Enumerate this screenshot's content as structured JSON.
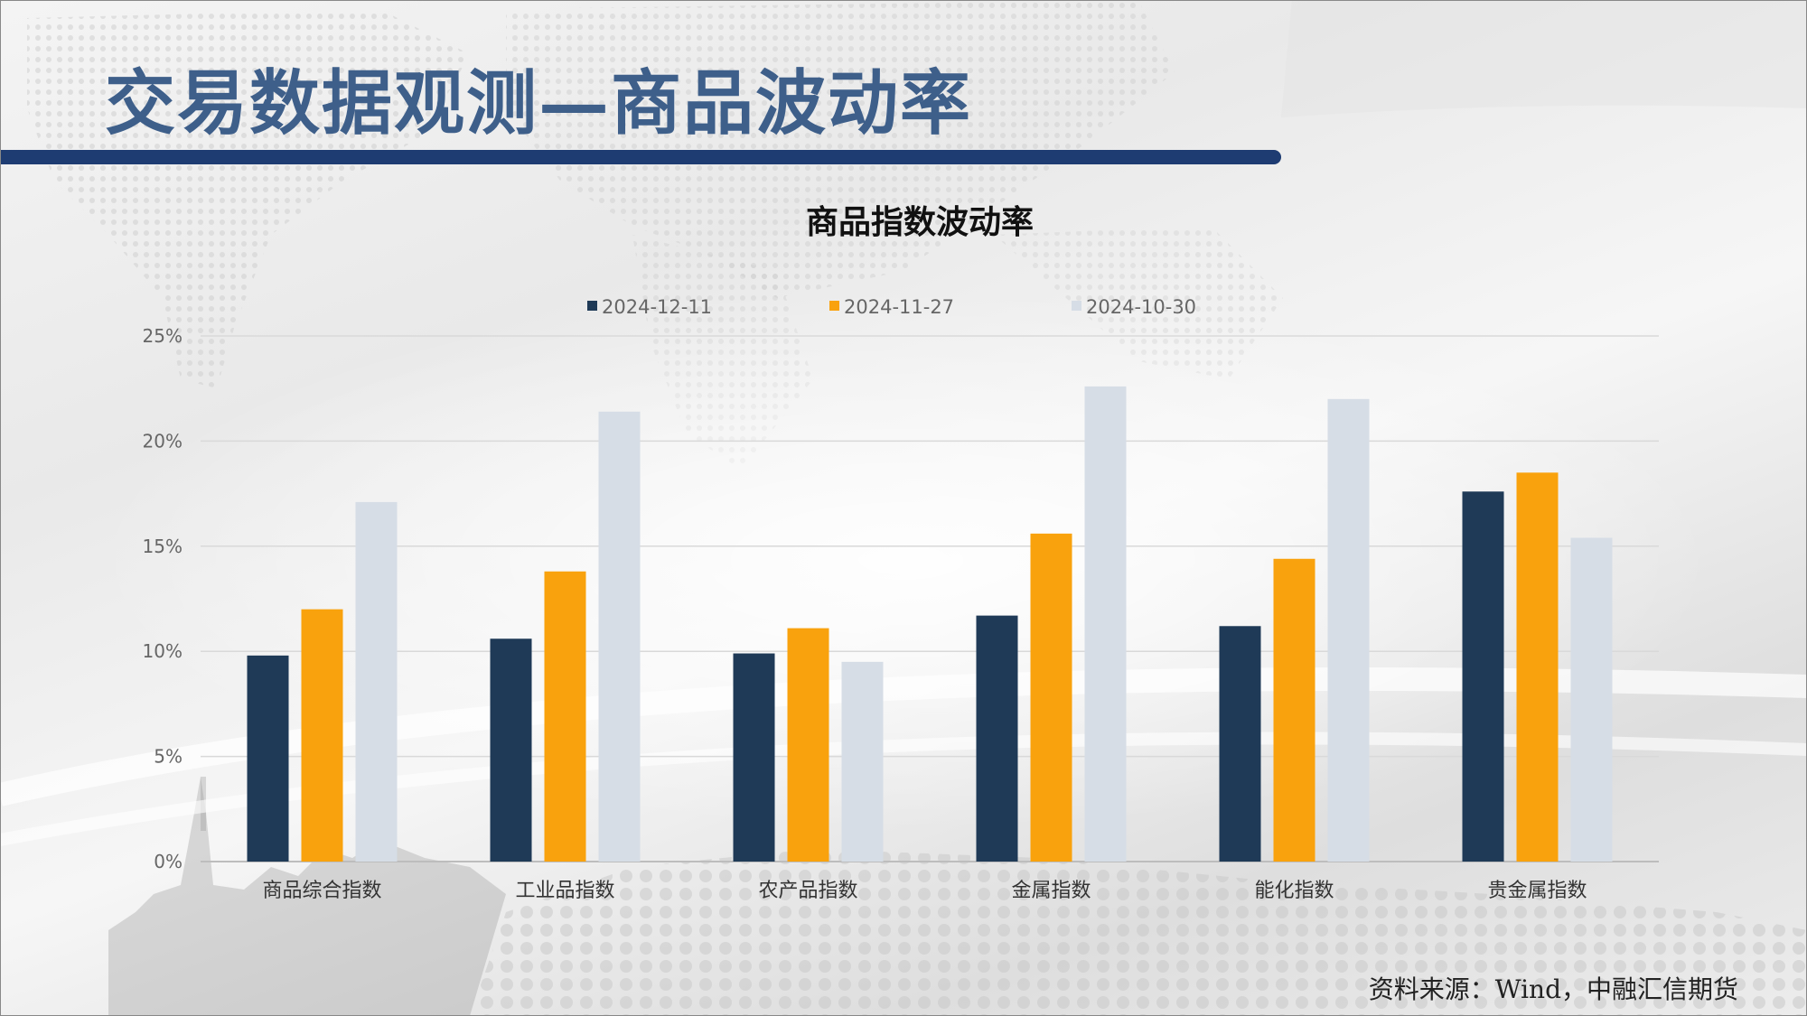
{
  "slide": {
    "title": "交易数据观测—商品波动率",
    "source": "资料来源：Wind，中融汇信期货"
  },
  "colors": {
    "title_text": "#3e5f8a",
    "title_bar": "#1e3c72",
    "series": [
      "#1f3a57",
      "#f9a20d",
      "#d6dde6"
    ]
  },
  "chart_data": {
    "type": "bar",
    "title": "商品指数波动率",
    "categories": [
      "商品综合指数",
      "工业品指数",
      "农产品指数",
      "金属指数",
      "能化指数",
      "贵金属指数"
    ],
    "series": [
      {
        "name": "2024-12-11",
        "values": [
          9.8,
          10.6,
          9.9,
          11.7,
          11.2,
          17.6
        ]
      },
      {
        "name": "2024-11-27",
        "values": [
          12.0,
          13.8,
          11.1,
          15.6,
          14.4,
          18.5
        ]
      },
      {
        "name": "2024-10-30",
        "values": [
          17.1,
          21.4,
          9.5,
          22.6,
          22.0,
          15.4
        ]
      }
    ],
    "y_ticks": [
      "0%",
      "5%",
      "10%",
      "15%",
      "20%",
      "25%"
    ],
    "ylim": [
      0,
      25
    ],
    "grid": true,
    "legend_position": "top"
  }
}
